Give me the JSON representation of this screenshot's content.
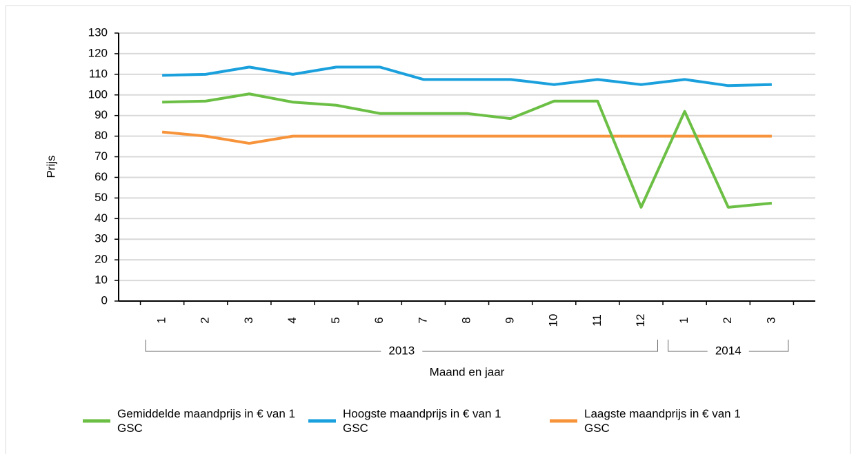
{
  "chart_data": {
    "type": "line",
    "categories": [
      "1",
      "2",
      "3",
      "4",
      "5",
      "6",
      "7",
      "8",
      "9",
      "10",
      "11",
      "12",
      "1",
      "2",
      "3"
    ],
    "x_groups": [
      {
        "label": "2013",
        "start": 0,
        "end": 11
      },
      {
        "label": "2014",
        "start": 12,
        "end": 14
      }
    ],
    "series": [
      {
        "name": "Gemiddelde maandprijs in € van 1 GSC",
        "color": "#6cbf45",
        "values": [
          96.5,
          97,
          100.5,
          96.5,
          95,
          91,
          91,
          91,
          88.5,
          97,
          97,
          45.5,
          92,
          45.5,
          47.5
        ]
      },
      {
        "name": "Hoogste maandprijs in € van 1 GSC",
        "color": "#1aa0dc",
        "values": [
          109.5,
          110,
          113.5,
          110,
          113.5,
          113.5,
          107.5,
          107.5,
          107.5,
          105,
          107.5,
          105,
          107.5,
          104.5,
          105
        ]
      },
      {
        "name": "Laagste maandprijs in € van 1 GSC",
        "color": "#f7943b",
        "values": [
          82,
          80,
          76.5,
          80,
          80,
          80,
          80,
          80,
          80,
          80,
          80,
          80,
          80,
          80,
          80
        ]
      }
    ],
    "ylabel": "Prijs",
    "xlabel": "Maand en jaar",
    "ylim": [
      0,
      130
    ],
    "yticks": [
      0,
      10,
      20,
      30,
      40,
      50,
      60,
      70,
      80,
      90,
      100,
      110,
      120,
      130
    ],
    "grid": true,
    "legend": "bottom"
  }
}
